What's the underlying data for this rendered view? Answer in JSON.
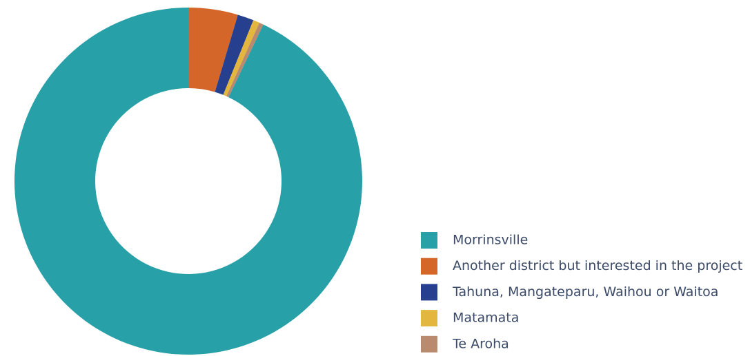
{
  "chart_data": {
    "type": "donut",
    "categories": [
      "Morrinsville",
      "Another district but interested in the project",
      "Tahuna, Mangateparu, Waihou or Waitoa",
      "Matamata",
      "Te Aroha"
    ],
    "values": [
      92.9,
      4.6,
      1.5,
      0.6,
      0.4
    ],
    "colors": [
      "#28a0a8",
      "#d4662a",
      "#263f8e",
      "#e3b73e",
      "#b98a6e"
    ],
    "legend": "bottom-right"
  }
}
